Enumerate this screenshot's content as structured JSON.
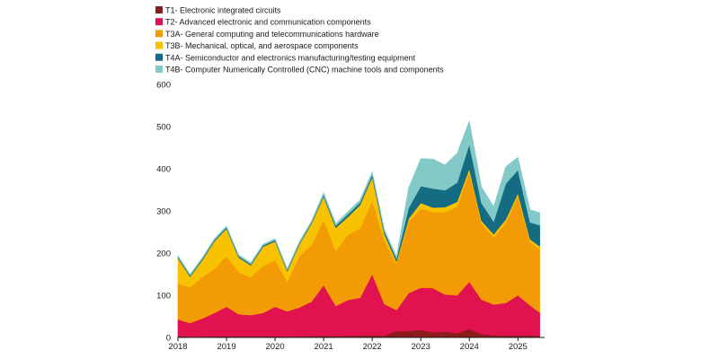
{
  "chart_data": {
    "type": "area",
    "stacked": true,
    "title": "",
    "xlabel": "",
    "ylabel": "",
    "ylim": [
      0,
      600
    ],
    "xlim": [
      2018.0,
      2025.55
    ],
    "yticks": [
      0,
      100,
      200,
      300,
      400,
      500,
      600
    ],
    "xticks": [
      2018,
      2019,
      2020,
      2021,
      2022,
      2023,
      2024,
      2025
    ],
    "grid": false,
    "legend_position": "top-left",
    "x": [
      2018.0,
      2018.25,
      2018.5,
      2018.75,
      2019.0,
      2019.25,
      2019.5,
      2019.75,
      2020.0,
      2020.25,
      2020.5,
      2020.75,
      2021.0,
      2021.25,
      2021.5,
      2021.75,
      2022.0,
      2022.25,
      2022.5,
      2022.75,
      2023.0,
      2023.25,
      2023.5,
      2023.75,
      2024.0,
      2024.25,
      2024.5,
      2024.75,
      2025.0,
      2025.25,
      2025.45
    ],
    "series": [
      {
        "name": "T1- Electronic integrated circuits",
        "color": "#8c1c1c",
        "values": [
          3,
          2,
          2,
          3,
          3,
          3,
          3,
          3,
          3,
          2,
          3,
          3,
          4,
          3,
          4,
          4,
          5,
          4,
          15,
          15,
          18,
          12,
          14,
          10,
          20,
          8,
          5,
          4,
          5,
          4,
          4
        ]
      },
      {
        "name": "T2- Advanced electronic and communication components",
        "color": "#e0124f",
        "values": [
          40,
          32,
          43,
          55,
          70,
          52,
          50,
          55,
          70,
          60,
          68,
          82,
          120,
          72,
          85,
          90,
          145,
          75,
          50,
          90,
          100,
          105,
          88,
          90,
          112,
          82,
          73,
          78,
          95,
          72,
          55
        ]
      },
      {
        "name": "T3A- General computing and telecommunications hardware",
        "color": "#f29b05",
        "values": [
          85,
          85,
          98,
          105,
          120,
          100,
          90,
          112,
          110,
          70,
          122,
          135,
          155,
          130,
          155,
          165,
          175,
          150,
          110,
          170,
          188,
          180,
          195,
          210,
          260,
          180,
          160,
          190,
          235,
          150,
          150
        ]
      },
      {
        "name": "T3B- Mechanical, optical, and aerospace components",
        "color": "#f9c200",
        "values": [
          60,
          25,
          40,
          65,
          65,
          35,
          28,
          45,
          45,
          25,
          28,
          50,
          55,
          55,
          42,
          55,
          55,
          16,
          5,
          7,
          13,
          11,
          12,
          12,
          8,
          7,
          7,
          8,
          7,
          7,
          7
        ]
      },
      {
        "name": "T4A- Semiconductor and electronics manufacturing/testing equipment",
        "color": "#146c82",
        "values": [
          3,
          3,
          3,
          3,
          3,
          3,
          3,
          3,
          3,
          3,
          3,
          3,
          4,
          5,
          6,
          6,
          6,
          6,
          7,
          25,
          40,
          45,
          40,
          45,
          58,
          42,
          30,
          85,
          55,
          40,
          50
        ]
      },
      {
        "name": "T4B- Computer Numerically Controlled (CNC) machine tools and components",
        "color": "#83c9c8",
        "values": [
          3,
          3,
          3,
          3,
          3,
          3,
          3,
          3,
          3,
          3,
          3,
          3,
          5,
          5,
          6,
          6,
          7,
          5,
          5,
          48,
          65,
          70,
          60,
          70,
          55,
          38,
          35,
          40,
          30,
          30,
          30
        ]
      }
    ]
  }
}
